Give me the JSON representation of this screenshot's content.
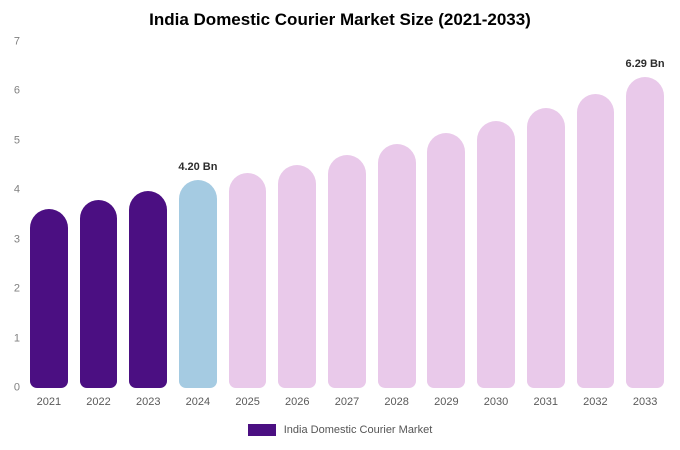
{
  "chart_data": {
    "type": "bar",
    "title": "India Domestic Courier Market Size (2021-2033)",
    "categories": [
      "2021",
      "2022",
      "2023",
      "2024",
      "2025",
      "2026",
      "2027",
      "2028",
      "2029",
      "2030",
      "2031",
      "2032",
      "2033"
    ],
    "values": [
      3.62,
      3.8,
      3.98,
      4.2,
      4.34,
      4.52,
      4.72,
      4.94,
      5.16,
      5.41,
      5.67,
      5.94,
      6.29
    ],
    "unit": "Bn",
    "ylim": [
      0,
      7
    ],
    "yticks": [
      0,
      1,
      2,
      3,
      4,
      5,
      6,
      7
    ],
    "grid": false,
    "legend_position": "bottom-center",
    "annotations": [
      {
        "index": 3,
        "text": "4.20 Bn"
      },
      {
        "index": 12,
        "text": "6.29 Bn"
      }
    ],
    "colors": {
      "historical": "#4b0f82",
      "current": "#a5cbe2",
      "forecast": "#e9c9ea"
    },
    "bar_roles": [
      "historical",
      "historical",
      "historical",
      "current",
      "forecast",
      "forecast",
      "forecast",
      "forecast",
      "forecast",
      "forecast",
      "forecast",
      "forecast",
      "forecast"
    ]
  },
  "legend": {
    "label": "India Domestic Courier Market",
    "swatch_color": "#4b0f82"
  }
}
